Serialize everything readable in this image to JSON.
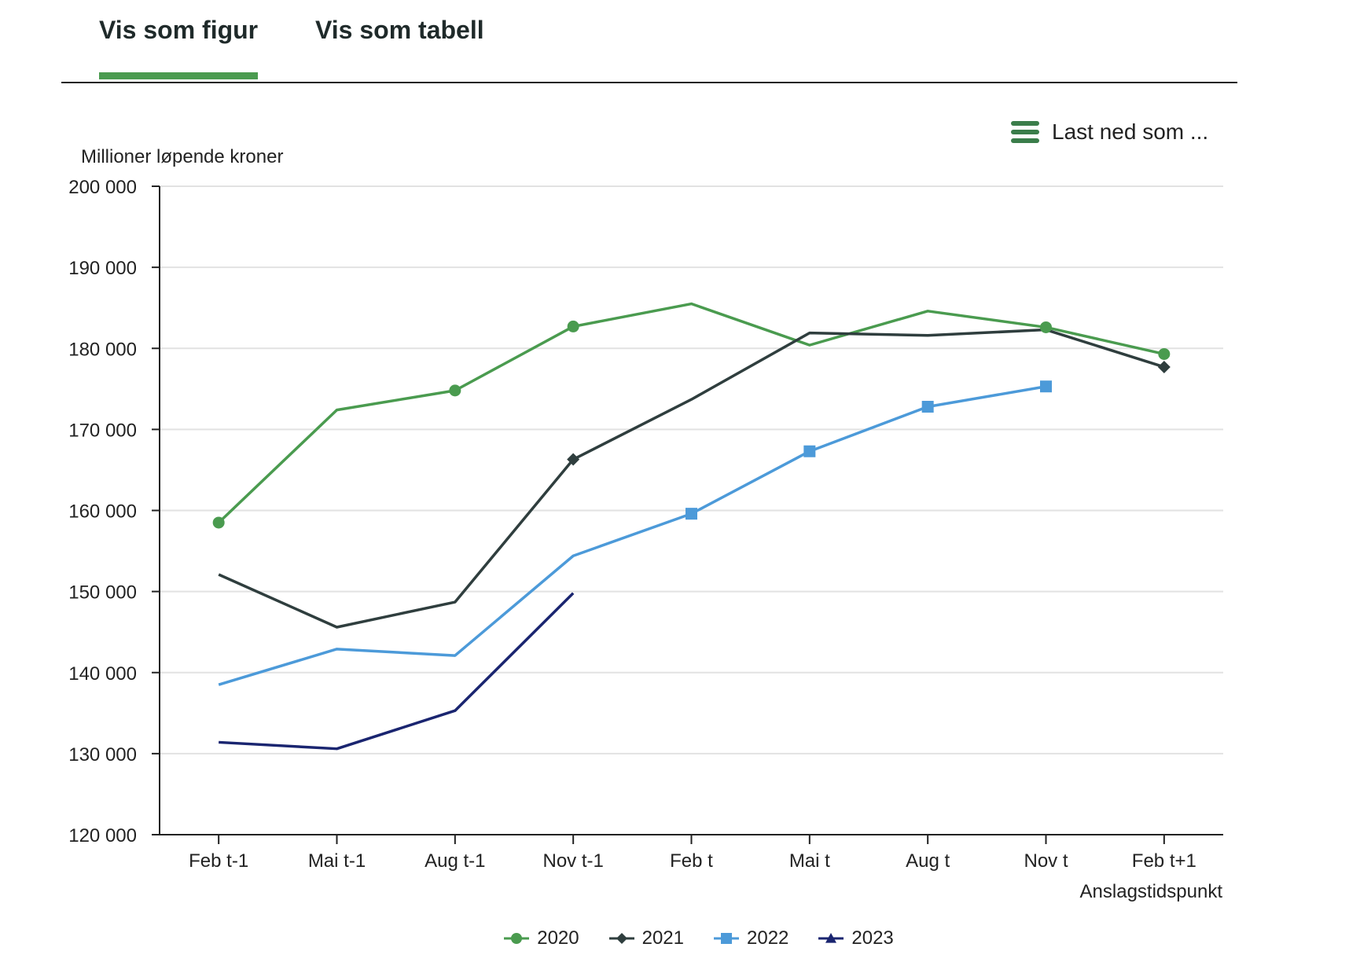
{
  "tabs": [
    {
      "label": "Vis som figur",
      "active": true
    },
    {
      "label": "Vis som tabell",
      "active": false
    }
  ],
  "download": {
    "label": "Last ned som ...",
    "icon": "menu-icon"
  },
  "chart_data": {
    "type": "line",
    "ylabel": "Millioner løpende kroner",
    "xlabel": "Anslagstidspunkt",
    "categories": [
      "Feb t-1",
      "Mai t-1",
      "Aug t-1",
      "Nov t-1",
      "Feb t",
      "Mai t",
      "Aug t",
      "Nov t",
      "Feb t+1"
    ],
    "ylim": [
      120000,
      200000
    ],
    "yticks": [
      120000,
      130000,
      140000,
      150000,
      160000,
      170000,
      180000,
      190000,
      200000
    ],
    "ytick_labels": [
      "120 000",
      "130 000",
      "140 000",
      "150 000",
      "160 000",
      "170 000",
      "180 000",
      "190 000",
      "200 000"
    ],
    "grid": true,
    "legend_position": "bottom",
    "series": [
      {
        "name": "2020",
        "color": "#4a9b4f",
        "marker": "circle",
        "values": [
          158500,
          172400,
          174800,
          182700,
          185500,
          180400,
          184600,
          182600,
          179300
        ],
        "marker_mask": [
          true,
          false,
          true,
          true,
          false,
          false,
          false,
          true,
          true
        ]
      },
      {
        "name": "2021",
        "color": "#2f3e3e",
        "marker": "diamond",
        "values": [
          152100,
          145600,
          148700,
          166300,
          173700,
          181900,
          181600,
          182300,
          177700
        ],
        "marker_mask": [
          false,
          false,
          false,
          true,
          false,
          false,
          false,
          false,
          true
        ]
      },
      {
        "name": "2022",
        "color": "#4c9ad9",
        "marker": "square",
        "values": [
          138500,
          142900,
          142100,
          154400,
          159600,
          167300,
          172800,
          175300,
          null
        ],
        "marker_mask": [
          false,
          false,
          false,
          false,
          true,
          true,
          true,
          true,
          false
        ]
      },
      {
        "name": "2023",
        "color": "#1a2570",
        "marker": "triangle",
        "values": [
          131400,
          130600,
          135300,
          149800,
          null,
          null,
          null,
          null,
          null
        ],
        "marker_mask": [
          false,
          false,
          false,
          false,
          false,
          false,
          false,
          false,
          false
        ]
      }
    ]
  }
}
